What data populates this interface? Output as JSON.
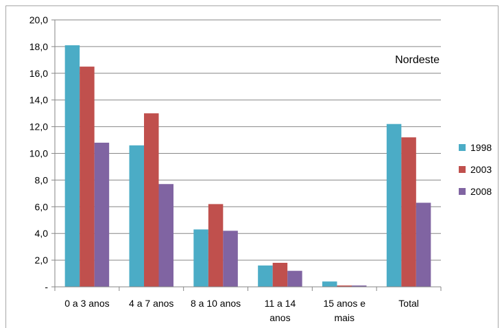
{
  "chart_data": {
    "type": "bar",
    "annotation": "Nordeste",
    "categories": [
      [
        "0 a 3 anos"
      ],
      [
        "4 a 7 anos"
      ],
      [
        "8 a 10 anos"
      ],
      [
        "11 a 14",
        "anos"
      ],
      [
        "15 anos e",
        "mais"
      ],
      [
        "Total"
      ]
    ],
    "series": [
      {
        "name": "1998",
        "color": "#4bacc6",
        "values": [
          18.1,
          10.6,
          4.3,
          1.6,
          0.4,
          12.2
        ]
      },
      {
        "name": "2003",
        "color": "#c0504d",
        "values": [
          16.5,
          13.0,
          6.2,
          1.8,
          0.1,
          11.2
        ]
      },
      {
        "name": "2008",
        "color": "#8064a2",
        "values": [
          10.8,
          7.7,
          4.2,
          1.2,
          0.1,
          6.3
        ]
      }
    ],
    "ylim": [
      0,
      20
    ],
    "yticks": [
      "-",
      "2,0",
      "4,0",
      "6,0",
      "8,0",
      "10,0",
      "12,0",
      "14,0",
      "16,0",
      "18,0",
      "20,0"
    ],
    "grid": true,
    "legend_position": "right"
  }
}
